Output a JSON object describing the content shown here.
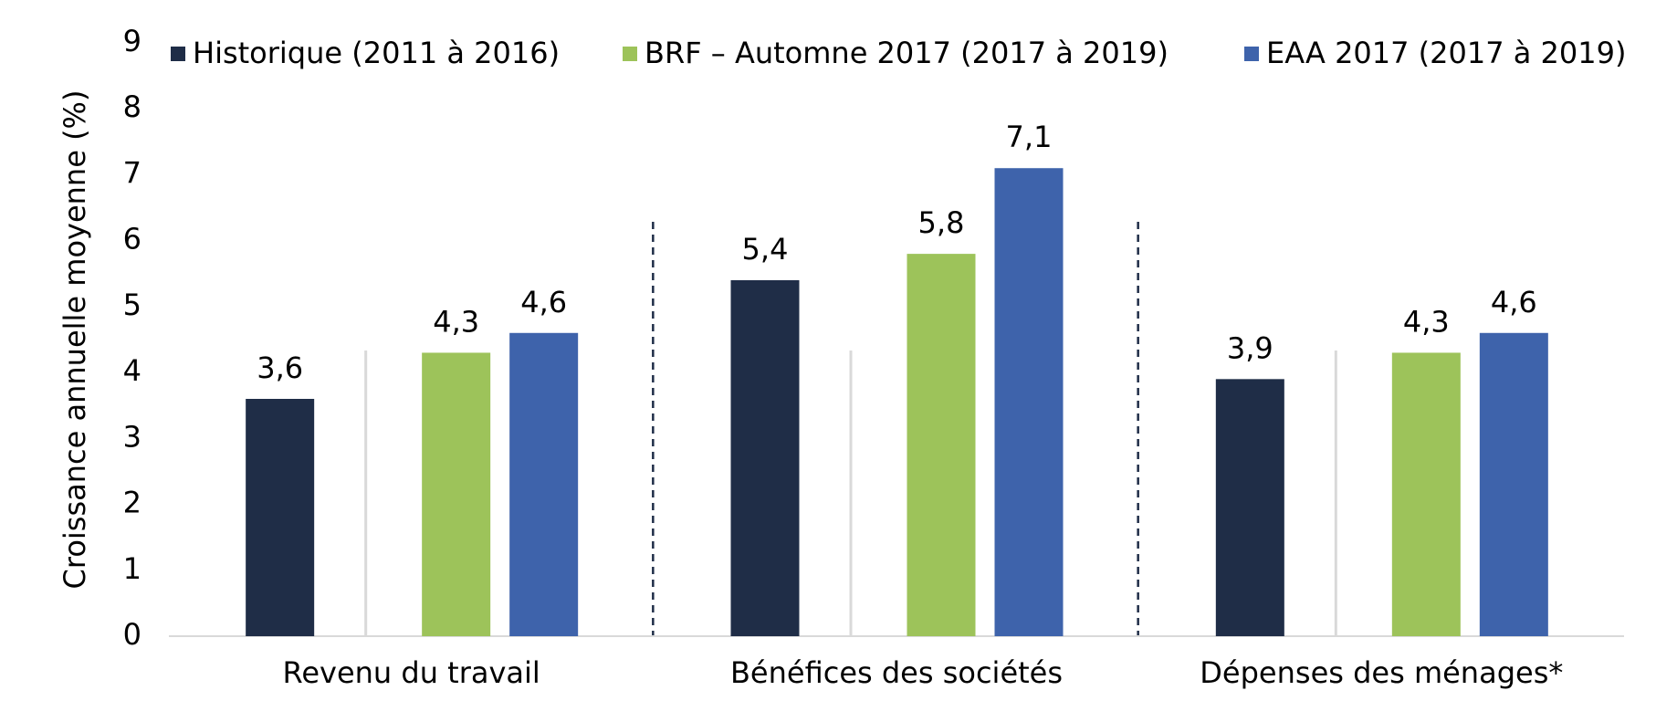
{
  "chart_data": {
    "type": "bar",
    "y_label": "Croissance annuelle moyenne (%)",
    "categories": [
      "Revenu du travail",
      "Bénéfices des sociétés",
      "Dépenses des ménages*"
    ],
    "series": [
      {
        "name": "Historique (2011 à 2016)",
        "color": "#1f2d47",
        "values": [
          3.6,
          5.4,
          3.9
        ],
        "value_labels": [
          "3,6",
          "5,4",
          "3,9"
        ]
      },
      {
        "name": "BRF – Automne 2017 (2017 à 2019)",
        "color": "#9dc35a",
        "values": [
          4.3,
          5.8,
          4.3
        ],
        "value_labels": [
          "4,3",
          "5,8",
          "4,3"
        ]
      },
      {
        "name": "EAA 2017 (2017 à 2019)",
        "color": "#3e63ab",
        "values": [
          4.6,
          7.1,
          4.6
        ],
        "value_labels": [
          "4,6",
          "7,1",
          "4,6"
        ]
      }
    ],
    "ylim": [
      0,
      9
    ],
    "yticks": [
      0,
      1,
      2,
      3,
      4,
      5,
      6,
      7,
      8,
      9
    ],
    "grid": false,
    "legend": "top"
  }
}
